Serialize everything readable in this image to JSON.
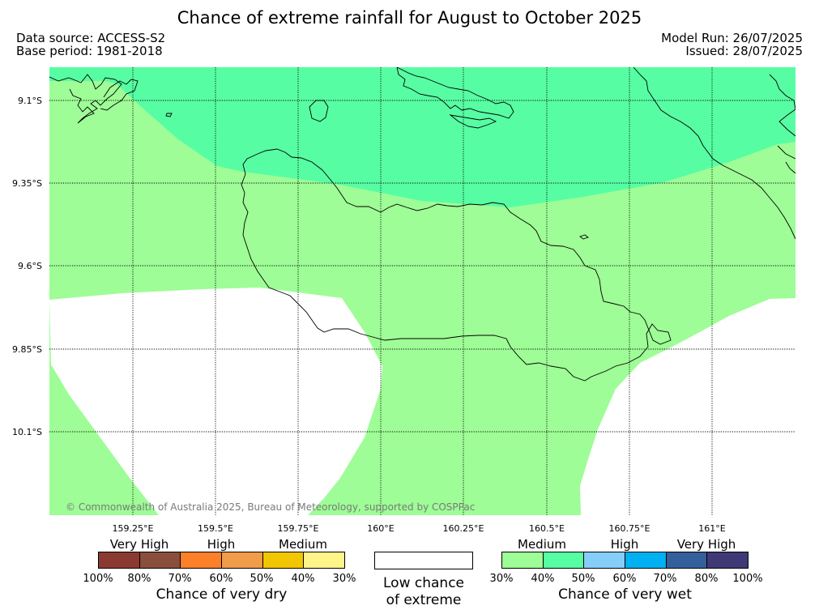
{
  "header": {
    "title": "Chance of extreme rainfall for August to October 2025",
    "data_source": "Data source: ACCESS-S2",
    "base_period": "Base period: 1981-2018",
    "model_run": "Model Run: 26/07/2025",
    "issued": "Issued: 28/07/2025"
  },
  "map": {
    "lat_labels": [
      "9.1°S",
      "9.35°S",
      "9.6°S",
      "9.85°S",
      "10.1°S"
    ],
    "lon_labels": [
      "159.25°E",
      "159.5°E",
      "159.75°E",
      "160°E",
      "160.25°E",
      "160.5°E",
      "160.75°E",
      "161°E"
    ],
    "copyright": "© Commonwealth of Australia 2025, Bureau of Meteorology, supported by COSPPac",
    "colors": {
      "medium_wet": "#9efd96",
      "high_wet": "#57fda3",
      "low_chance": "#ffffff",
      "coastline": "#000000",
      "grid": "#000000"
    }
  },
  "legend": {
    "dry": {
      "categories": [
        "Very High",
        "High",
        "Medium"
      ],
      "colors": [
        "#8b3a31",
        "#8a4e3d",
        "#fc7f2a",
        "#f09c48",
        "#f2c600",
        "#fff48a"
      ],
      "ticks": [
        "100%",
        "80%",
        "70%",
        "60%",
        "50%",
        "40%",
        "30%"
      ],
      "caption": "Chance of very dry"
    },
    "low": {
      "line1": "Low chance",
      "line2": "of extreme"
    },
    "wet": {
      "categories": [
        "Medium",
        "High",
        "Very High"
      ],
      "colors": [
        "#9efd96",
        "#57fda3",
        "#86cefa",
        "#00b0f0",
        "#345f9b",
        "#3f3976"
      ],
      "ticks": [
        "30%",
        "40%",
        "50%",
        "60%",
        "70%",
        "80%",
        "100%"
      ],
      "caption": "Chance of very wet"
    }
  }
}
